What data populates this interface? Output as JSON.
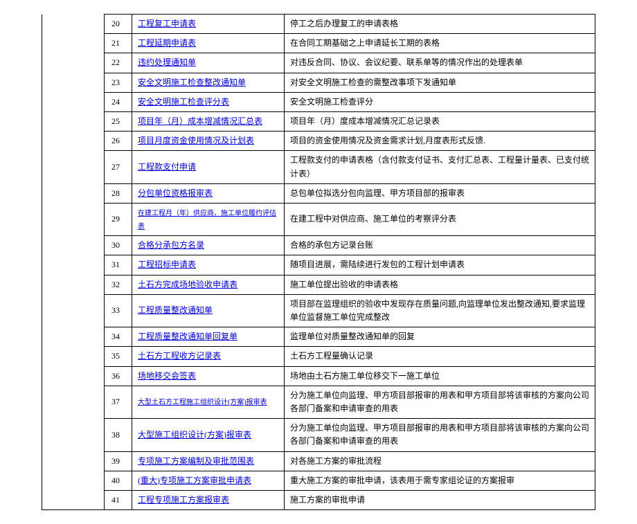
{
  "rows": [
    {
      "num": "20",
      "title": "工程复工申请表",
      "small": false,
      "desc": "停工之后办理复工的申请表格"
    },
    {
      "num": "21",
      "title": "工程延期申请表",
      "small": false,
      "desc": "在合同工期基础之上申请延长工期的表格"
    },
    {
      "num": "22",
      "title": "违约处理通知单",
      "small": false,
      "desc": "对违反合同、协议、会议纪要、联系单等的情况作出的处理表单"
    },
    {
      "num": "23",
      "title": "安全文明施工检查整改通知单",
      "small": false,
      "desc": "对安全文明施工检查的需整改事项下发通知单"
    },
    {
      "num": "24",
      "title": "安全文明施工检查评分表",
      "small": false,
      "desc": "安全文明施工检查评分"
    },
    {
      "num": "25",
      "title": "项目年（月）成本增减情况汇总表",
      "small": false,
      "desc": "项目年（月）度成本增减情况汇总记录表"
    },
    {
      "num": "26",
      "title": "项目月度资金使用情况及计划表",
      "small": false,
      "desc": "项目的资金使用情况及资金需求计划,月度表形式反馈."
    },
    {
      "num": "27",
      "title": "工程款支付申请",
      "small": false,
      "desc": "工程款支付的申请表格（含付款支付证书、支付汇总表、工程量计量表、已支付统计表）"
    },
    {
      "num": "28",
      "title": "分包单位资格报审表",
      "small": false,
      "desc": "总包单位拟选分包向监理、甲方项目部的报审表"
    },
    {
      "num": "29",
      "title": "在建工程月（年）供应商、施工单位履约评估表",
      "small": true,
      "desc": "在建工程中对供应商、施工单位的考察评分表"
    },
    {
      "num": "30",
      "title": "合格分承包方名录",
      "small": false,
      "desc": "合格的承包方记录台账"
    },
    {
      "num": "31",
      "title": "工程招标申请表",
      "small": false,
      "desc": "随项目进展，需陆续进行发包的工程计划申请表"
    },
    {
      "num": "32",
      "title": "土石方完成场地验收申请表",
      "small": false,
      "desc": "施工单位提出验收的申请表格"
    },
    {
      "num": "33",
      "title": "工程质量整改通知单",
      "small": false,
      "desc": "项目部在监理组织的验收中发现存在质量问题,向监理单位发出整改通知,要求监理单位监督施工单位完成整改"
    },
    {
      "num": "34",
      "title": "工程质量整改通知单回复单",
      "small": false,
      "desc": "监理单位对质量整改通知单的回复"
    },
    {
      "num": "35",
      "title": "土石方工程收方记录表",
      "small": false,
      "desc": "土石方工程量确认记录"
    },
    {
      "num": "36",
      "title": "场地移交会签表",
      "small": false,
      "desc": "场地由土石方施工单位移交下一施工单位"
    },
    {
      "num": "37",
      "title": "大型土石方工程施工组织设计(方案)报审表",
      "small": true,
      "desc": "分为施工单位向监理、甲方项目部报审的用表和甲方项目部将该审核的方案向公司各部门备案和申请审查的用表"
    },
    {
      "num": "38",
      "title": "大型施工组织设计(方案)报审表",
      "small": false,
      "desc": "分为施工单位向监理、甲方项目部报审的用表和甲方项目部将该审核的方案向公司各部门备案和申请审查的用表"
    },
    {
      "num": "39",
      "title": "专项施工方案编制及审批范围表",
      "small": false,
      "desc": "对各施工方案的审批流程"
    },
    {
      "num": "40",
      "title": "(重大)专项施工方案审批申请表",
      "small": false,
      "desc": "重大施工方案的审批申请，该表用于需专家组论证的方案报审"
    },
    {
      "num": "41",
      "title": "工程专项施工方案报审表",
      "small": false,
      "desc": "施工方案的审批申请"
    }
  ]
}
